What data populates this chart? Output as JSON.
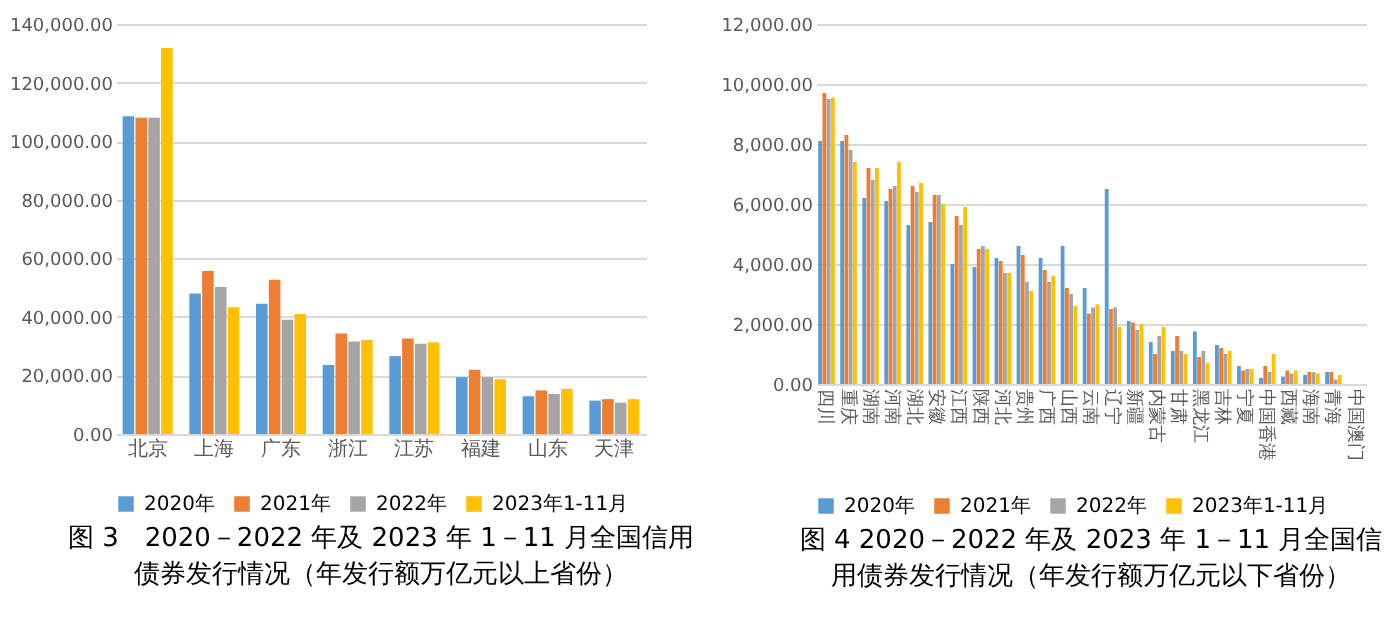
{
  "chart_data": [
    {
      "type": "bar",
      "title": "图 3　2020－2022 年及 2023 年 1－11 月全国信用债券发行情况（年发行额万亿元以上省份）",
      "categories": [
        "北京",
        "上海",
        "广东",
        "浙江",
        "江苏",
        "福建",
        "山东",
        "天津"
      ],
      "series": [
        {
          "name": "2020年",
          "color": "#5b9bd5",
          "values": [
            108500,
            48000,
            44500,
            23600,
            26600,
            19400,
            12900,
            11400
          ]
        },
        {
          "name": "2021年",
          "color": "#ed7d31",
          "values": [
            108000,
            55700,
            52700,
            34300,
            32600,
            21900,
            14900,
            11900
          ]
        },
        {
          "name": "2022年",
          "color": "#a5a5a5",
          "values": [
            108000,
            50200,
            39000,
            31600,
            30800,
            19400,
            13700,
            10700
          ]
        },
        {
          "name": "2023年1-11月",
          "color": "#ffc000",
          "values": [
            131800,
            43300,
            41000,
            32100,
            31300,
            18700,
            15400,
            11900
          ]
        }
      ],
      "ylim": [
        0,
        140000
      ],
      "yticks": [
        {
          "value": 0,
          "label": "0.00"
        },
        {
          "value": 20000,
          "label": "20,000.00"
        },
        {
          "value": 40000,
          "label": "40,000.00"
        },
        {
          "value": 60000,
          "label": "60,000.00"
        },
        {
          "value": 80000,
          "label": "80,000.00"
        },
        {
          "value": 100000,
          "label": "100,000.00"
        },
        {
          "value": 120000,
          "label": "120,000.00"
        },
        {
          "value": 140000,
          "label": "140,000.00"
        }
      ],
      "grid": "y",
      "legend": "bottom"
    },
    {
      "type": "bar",
      "title": "图 4 2020－2022 年及 2023 年 1－11 月全国信用债券发行情况（年发行额万亿元以下省份）",
      "categories": [
        "四川",
        "重庆",
        "湖南",
        "河南",
        "湖北",
        "安徽",
        "江西",
        "陕西",
        "河北",
        "贵州",
        "广西",
        "山西",
        "云南",
        "辽宁",
        "新疆",
        "内蒙古",
        "甘肃",
        "黑龙江",
        "吉林",
        "宁夏",
        "中国香港",
        "西藏",
        "海南",
        "青海",
        "中国澳门"
      ],
      "series": [
        {
          "name": "2020年",
          "color": "#5b9bd5",
          "values": [
            8100,
            8100,
            6200,
            6100,
            5300,
            5400,
            4000,
            3900,
            4200,
            4600,
            4200,
            4600,
            3200,
            6500,
            2100,
            1400,
            1100,
            1750,
            1300,
            600,
            200,
            250,
            300,
            400,
            null
          ]
        },
        {
          "name": "2021年",
          "color": "#ed7d31",
          "values": [
            9700,
            8300,
            7200,
            6500,
            6600,
            6300,
            5600,
            4500,
            4100,
            4300,
            3800,
            3200,
            2350,
            2500,
            2050,
            1000,
            1600,
            900,
            1200,
            450,
            600,
            450,
            400,
            400,
            null
          ]
        },
        {
          "name": "2022年",
          "color": "#a5a5a5",
          "values": [
            9500,
            7800,
            6800,
            6600,
            6400,
            6300,
            5300,
            4600,
            3700,
            3400,
            3400,
            3000,
            2550,
            2550,
            1800,
            1600,
            1100,
            1100,
            1000,
            500,
            400,
            350,
            400,
            150,
            null
          ]
        },
        {
          "name": "2023年1-11月",
          "color": "#ffc000",
          "values": [
            9550,
            7400,
            7200,
            7400,
            6700,
            6000,
            5900,
            4500,
            3700,
            3100,
            3600,
            2600,
            2650,
            1900,
            2000,
            1900,
            1000,
            700,
            1100,
            500,
            1000,
            450,
            350,
            300,
            null
          ]
        }
      ],
      "ylim": [
        0,
        12000
      ],
      "yticks": [
        {
          "value": 0,
          "label": "0.00"
        },
        {
          "value": 2000,
          "label": "2,000.00"
        },
        {
          "value": 4000,
          "label": "4,000.00"
        },
        {
          "value": 6000,
          "label": "6,000.00"
        },
        {
          "value": 8000,
          "label": "8,000.00"
        },
        {
          "value": 10000,
          "label": "10,000.00"
        },
        {
          "value": 12000,
          "label": "12,000.00"
        }
      ],
      "grid": "y",
      "legend": "bottom"
    }
  ]
}
